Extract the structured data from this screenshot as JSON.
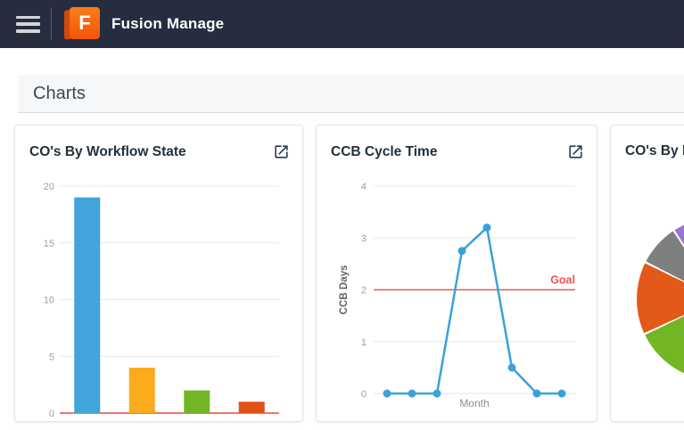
{
  "navbar": {
    "title": "Fusion Manage",
    "logo_letter": "F"
  },
  "page": {
    "header": "Charts"
  },
  "cards": [
    {
      "title": "CO's By Workflow State"
    },
    {
      "title": "CCB Cycle Time"
    },
    {
      "title": "CO's By R"
    }
  ],
  "colors": {
    "navbar_bg": "#252d3e",
    "accent_orange": "#f1530c"
  },
  "chart_data": [
    {
      "type": "bar",
      "title": "CO's By Workflow State",
      "categories": [
        "",
        "",
        "",
        ""
      ],
      "values": [
        19,
        4,
        2,
        1
      ],
      "bar_colors": [
        "#41a5dc",
        "#fbab1c",
        "#72b626",
        "#df5016"
      ],
      "ylim": [
        0,
        20
      ],
      "yticks": [
        0,
        5,
        10,
        15,
        20
      ],
      "baseline_color": "#f5756b",
      "grid": true,
      "xlabel": "",
      "ylabel": ""
    },
    {
      "type": "line",
      "title": "CCB Cycle Time",
      "x": [
        1,
        2,
        3,
        4,
        5,
        6,
        7,
        8
      ],
      "values": [
        0,
        0,
        0,
        2.75,
        3.2,
        0.5,
        0,
        0
      ],
      "line_color": "#3ba1da",
      "marker_radius": 4.5,
      "ylim": [
        0,
        4
      ],
      "yticks": [
        0,
        1,
        2,
        3,
        4
      ],
      "xlabel": "Month",
      "ylabel": "CCB Days",
      "goal": {
        "value": 2,
        "label": "Goal",
        "color": "#f0534f"
      },
      "grid": true
    },
    {
      "type": "pie",
      "title": "CO's By R",
      "partially_visible": true,
      "slices": [
        {
          "color": "#41a5dc",
          "start": 0,
          "end": 203
        },
        {
          "color": "#72b626",
          "start": 204.5,
          "end": 244
        },
        {
          "color": "#e2591a",
          "start": 245.5,
          "end": 296
        },
        {
          "color": "#7f7f7f",
          "start": 297.5,
          "end": 326
        },
        {
          "color": "#9b76d0",
          "start": 327.5,
          "end": 341
        },
        {
          "color": "#41a5dc",
          "start": 342.5,
          "end": 360
        }
      ]
    }
  ]
}
